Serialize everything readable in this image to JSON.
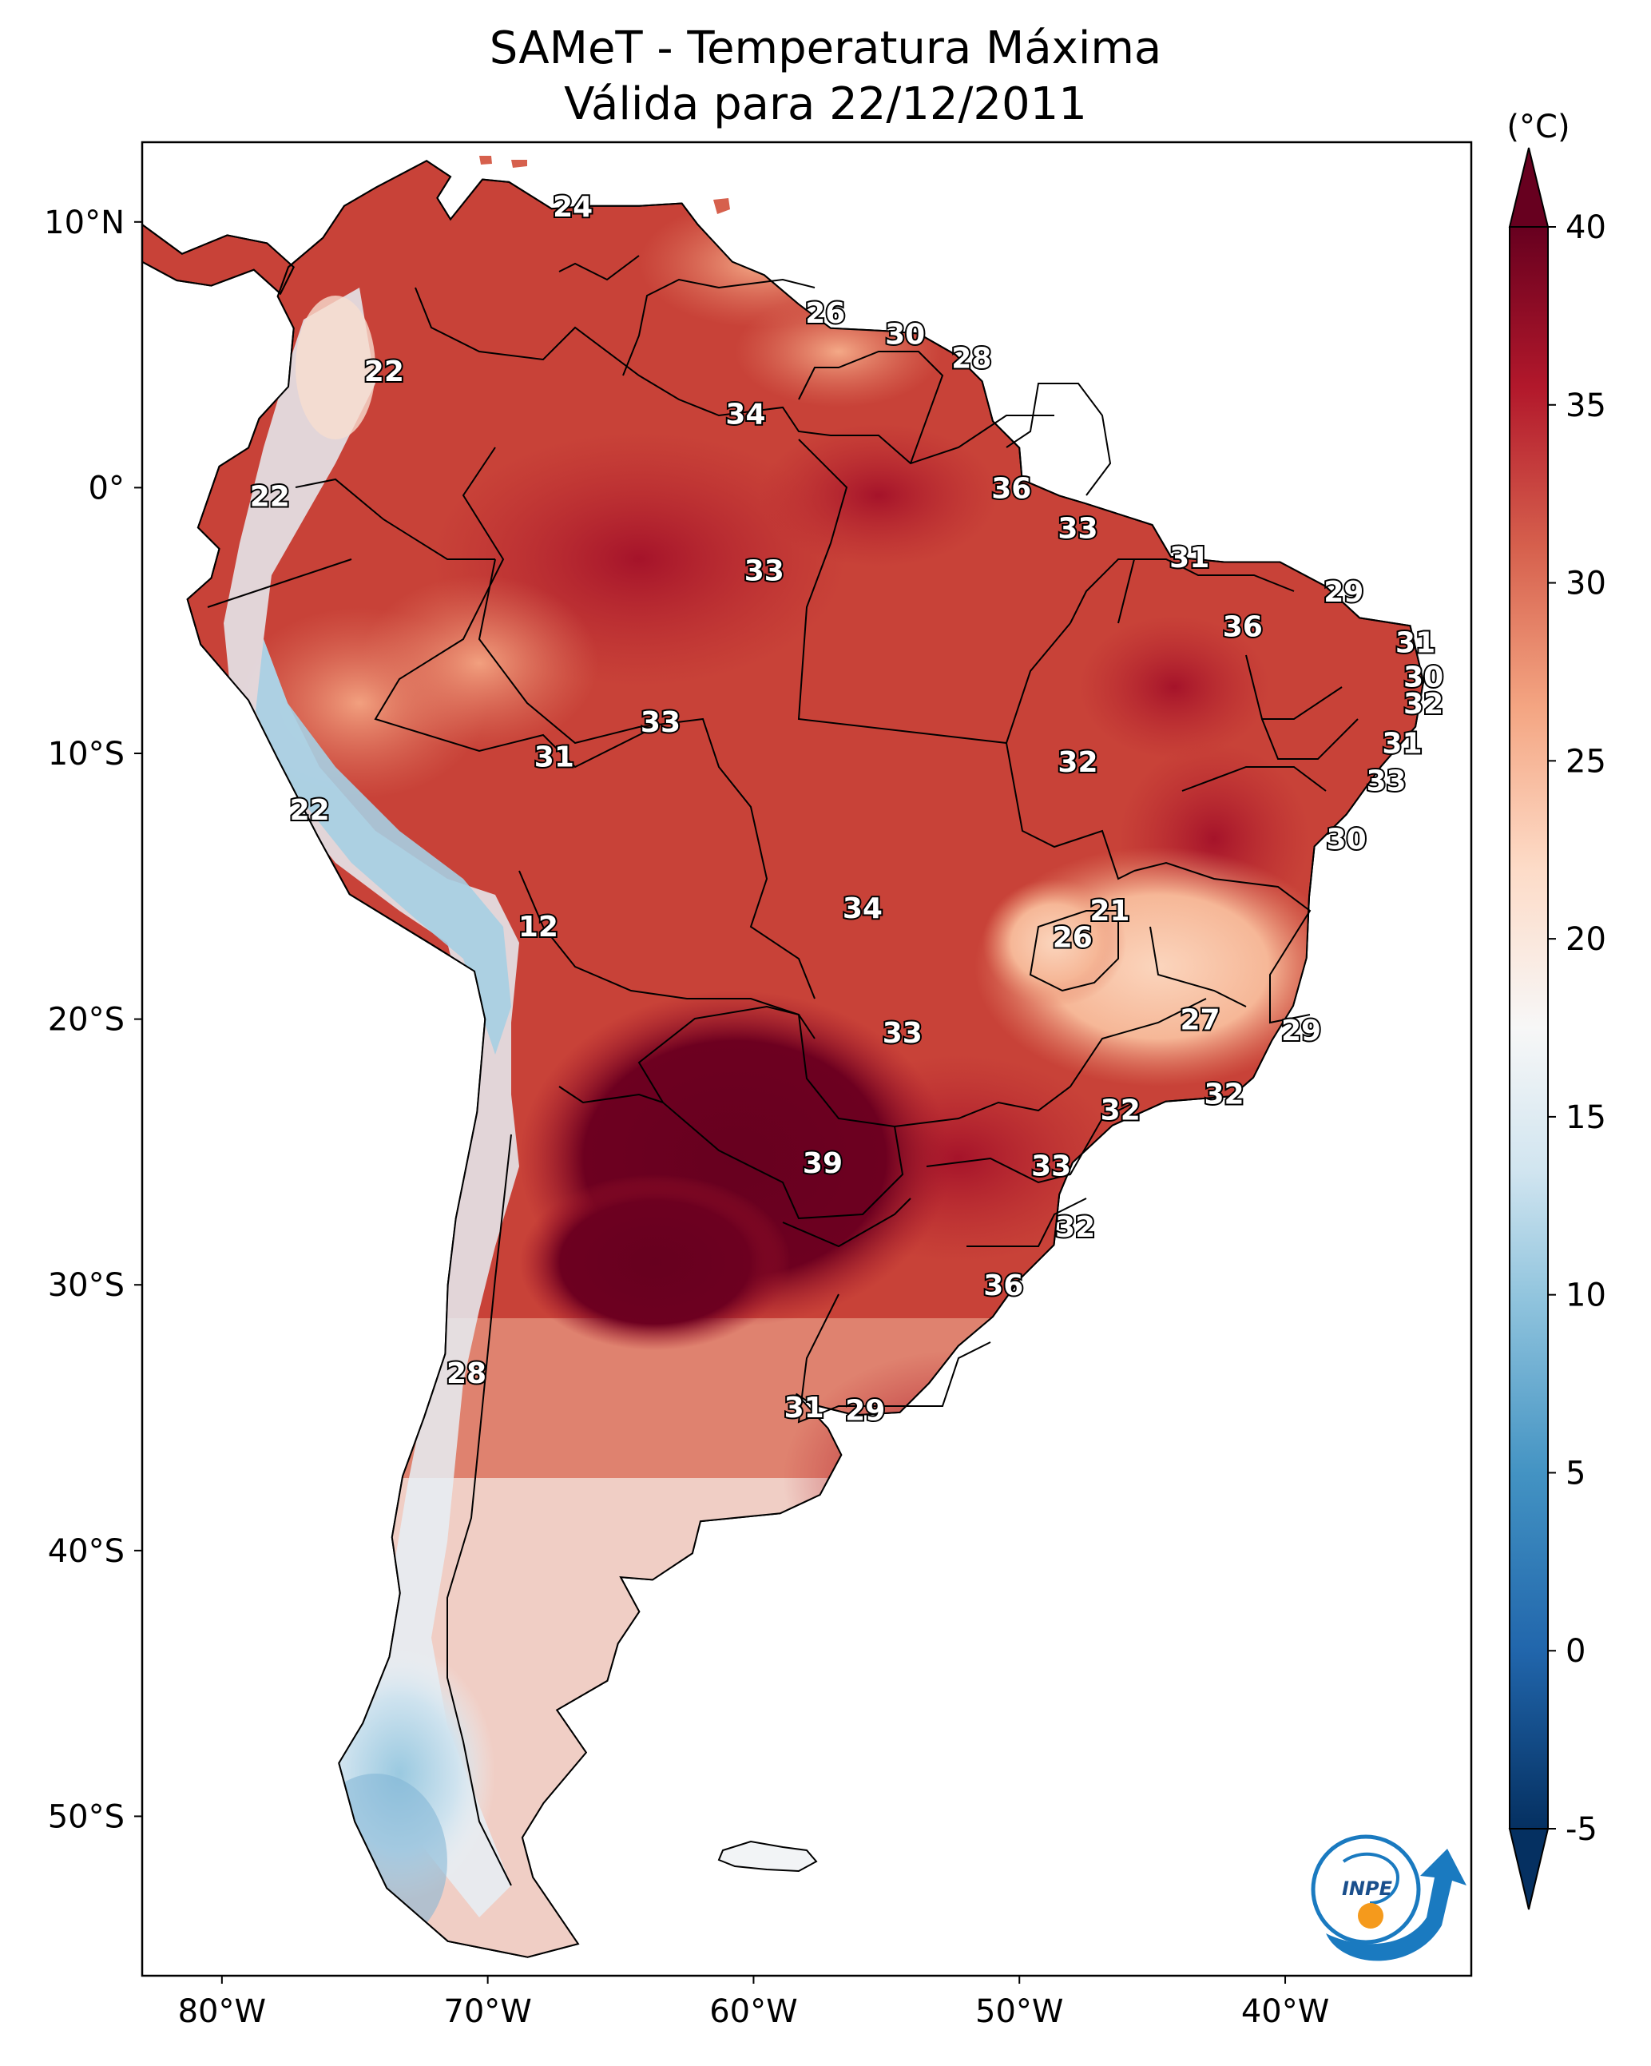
{
  "title": "SAMeT - Temperatura Máxima",
  "subtitle": "Válida para 22/12/2011",
  "map": {
    "type": "temperature-map",
    "region": "South America",
    "lon_range": [
      -83,
      -33
    ],
    "lat_range": [
      -56,
      13
    ],
    "lat_ticks": [
      {
        "value": 10,
        "label": "10°N"
      },
      {
        "value": 0,
        "label": "0°"
      },
      {
        "value": -10,
        "label": "10°S"
      },
      {
        "value": -20,
        "label": "20°S"
      },
      {
        "value": -30,
        "label": "30°S"
      },
      {
        "value": -40,
        "label": "40°S"
      },
      {
        "value": -50,
        "label": "50°S"
      }
    ],
    "lon_ticks": [
      {
        "value": -80,
        "label": "80°W"
      },
      {
        "value": -70,
        "label": "70°W"
      },
      {
        "value": -60,
        "label": "60°W"
      },
      {
        "value": -50,
        "label": "50°W"
      },
      {
        "value": -40,
        "label": "40°W"
      }
    ],
    "labels": [
      {
        "lon": -66.8,
        "lat": 10.6,
        "text": "24"
      },
      {
        "lon": -57.3,
        "lat": 6.6,
        "text": "26"
      },
      {
        "lon": -54.3,
        "lat": 5.8,
        "text": "30"
      },
      {
        "lon": -51.8,
        "lat": 4.9,
        "text": "28"
      },
      {
        "lon": -73.9,
        "lat": 4.4,
        "text": "22"
      },
      {
        "lon": -60.3,
        "lat": 2.8,
        "text": "34"
      },
      {
        "lon": -78.2,
        "lat": -0.3,
        "text": "22"
      },
      {
        "lon": -50.3,
        "lat": 0.0,
        "text": "36"
      },
      {
        "lon": -47.8,
        "lat": -1.5,
        "text": "33"
      },
      {
        "lon": -59.6,
        "lat": -3.1,
        "text": "33"
      },
      {
        "lon": -43.6,
        "lat": -2.6,
        "text": "31"
      },
      {
        "lon": -37.8,
        "lat": -3.9,
        "text": "29"
      },
      {
        "lon": -41.6,
        "lat": -5.2,
        "text": "36"
      },
      {
        "lon": -35.1,
        "lat": -5.8,
        "text": "31"
      },
      {
        "lon": -34.8,
        "lat": -7.1,
        "text": "30"
      },
      {
        "lon": -34.8,
        "lat": -8.1,
        "text": "32"
      },
      {
        "lon": -63.5,
        "lat": -8.8,
        "text": "33"
      },
      {
        "lon": -35.6,
        "lat": -9.6,
        "text": "31"
      },
      {
        "lon": -67.5,
        "lat": -10.1,
        "text": "31"
      },
      {
        "lon": -47.8,
        "lat": -10.3,
        "text": "32"
      },
      {
        "lon": -36.2,
        "lat": -11.0,
        "text": "33"
      },
      {
        "lon": -76.7,
        "lat": -12.1,
        "text": "22"
      },
      {
        "lon": -37.7,
        "lat": -13.2,
        "text": "30"
      },
      {
        "lon": -55.9,
        "lat": -15.8,
        "text": "34"
      },
      {
        "lon": -46.6,
        "lat": -15.9,
        "text": "21"
      },
      {
        "lon": -48.0,
        "lat": -16.9,
        "text": "26"
      },
      {
        "lon": -68.1,
        "lat": -16.5,
        "text": "12"
      },
      {
        "lon": -43.2,
        "lat": -20.0,
        "text": "27"
      },
      {
        "lon": -39.4,
        "lat": -20.4,
        "text": "29"
      },
      {
        "lon": -54.4,
        "lat": -20.5,
        "text": "33"
      },
      {
        "lon": -42.3,
        "lat": -22.8,
        "text": "32"
      },
      {
        "lon": -46.2,
        "lat": -23.4,
        "text": "32"
      },
      {
        "lon": -57.4,
        "lat": -25.4,
        "text": "39"
      },
      {
        "lon": -48.8,
        "lat": -25.5,
        "text": "33"
      },
      {
        "lon": -47.9,
        "lat": -27.8,
        "text": "32"
      },
      {
        "lon": -50.6,
        "lat": -30.0,
        "text": "36"
      },
      {
        "lon": -70.8,
        "lat": -33.3,
        "text": "28"
      },
      {
        "lon": -58.1,
        "lat": -34.6,
        "text": "31"
      },
      {
        "lon": -55.8,
        "lat": -34.7,
        "text": "29"
      }
    ]
  },
  "colorbar": {
    "unit_label": "(°C)",
    "min": -5,
    "max": 40,
    "extend": "both",
    "cmap": "RdBu_r",
    "ticks": [
      {
        "value": 40,
        "label": "40"
      },
      {
        "value": 35,
        "label": "35"
      },
      {
        "value": 30,
        "label": "30"
      },
      {
        "value": 25,
        "label": "25"
      },
      {
        "value": 20,
        "label": "20"
      },
      {
        "value": 15,
        "label": "15"
      },
      {
        "value": 10,
        "label": "10"
      },
      {
        "value": 5,
        "label": "5"
      },
      {
        "value": 0,
        "label": "0"
      },
      {
        "value": -5,
        "label": "-5"
      }
    ],
    "colors": [
      "#053061",
      "#2166ac",
      "#4393c3",
      "#92c5de",
      "#d1e5f0",
      "#f7f7f7",
      "#fddbc7",
      "#f4a582",
      "#d6604d",
      "#b2182b",
      "#67001f"
    ]
  },
  "logo": {
    "text": "INPE",
    "color_primary": "#1a7ac0",
    "color_accent": "#f59a1c"
  },
  "colors": {
    "ocean": "#ffffff",
    "border": "#000000"
  }
}
